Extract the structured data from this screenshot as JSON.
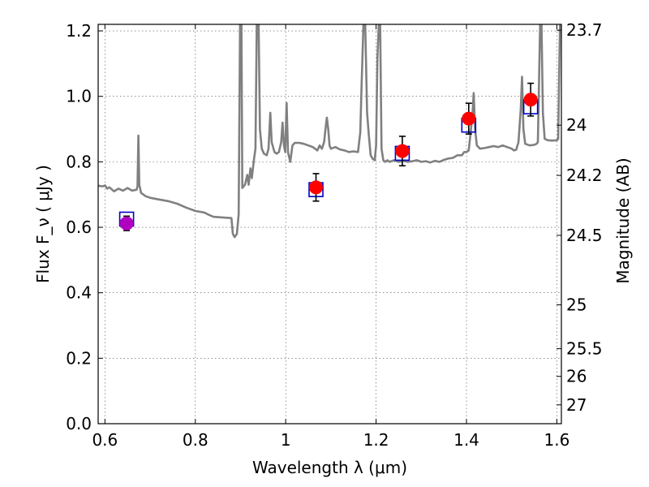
{
  "chart_data": {
    "type": "scatter",
    "xlabel": "Wavelength  λ (μm)",
    "ylabel": "Flux  F_ν  ( μJy )",
    "ylabel_right": "Magnitude (AB)",
    "xlim": [
      0.585,
      1.61
    ],
    "ylim": [
      0.0,
      1.22
    ],
    "grid": true,
    "x_ticks": [
      0.6,
      0.8,
      1.0,
      1.2,
      1.4,
      1.6
    ],
    "x_tick_labels": [
      "0.6",
      "0.8",
      "1",
      "1.2",
      "1.4",
      "1.6"
    ],
    "y_ticks": [
      0.0,
      0.2,
      0.4,
      0.6,
      0.8,
      1.0,
      1.2
    ],
    "y_tick_labels": [
      "0.0",
      "0.2",
      "0.4",
      "0.6",
      "0.8",
      "1.0",
      "1.2"
    ],
    "right_ticks": [
      {
        "label": "23.7",
        "mag": 23.7
      },
      {
        "label": "24",
        "mag": 24.0
      },
      {
        "label": "24.2",
        "mag": 24.2
      },
      {
        "label": "24.5",
        "mag": 24.5
      },
      {
        "label": "25",
        "mag": 25.0
      },
      {
        "label": "25.5",
        "mag": 25.5
      },
      {
        "label": "26",
        "mag": 26.0
      },
      {
        "label": "27",
        "mag": 27.0
      }
    ],
    "colors": {
      "spectrum": "#808080",
      "observed_point": "#ff0000",
      "first_point": "#b000c0",
      "model_box": "#0000cc",
      "errorbar": "#000000"
    },
    "observed": [
      {
        "x": 0.648,
        "y": 0.612,
        "err": 0.022,
        "color": "first"
      },
      {
        "x": 1.067,
        "y": 0.722,
        "err": 0.042
      },
      {
        "x": 1.258,
        "y": 0.833,
        "err": 0.045
      },
      {
        "x": 1.405,
        "y": 0.932,
        "err": 0.047
      },
      {
        "x": 1.542,
        "y": 0.99,
        "err": 0.05
      }
    ],
    "model_boxes": [
      {
        "x": 0.648,
        "y": 0.625
      },
      {
        "x": 1.067,
        "y": 0.715
      },
      {
        "x": 1.258,
        "y": 0.826
      },
      {
        "x": 1.405,
        "y": 0.912
      },
      {
        "x": 1.542,
        "y": 0.968
      }
    ],
    "spectrum": [
      [
        0.585,
        0.727
      ],
      [
        0.595,
        0.725
      ],
      [
        0.6,
        0.728
      ],
      [
        0.605,
        0.718
      ],
      [
        0.61,
        0.722
      ],
      [
        0.62,
        0.71
      ],
      [
        0.63,
        0.718
      ],
      [
        0.64,
        0.712
      ],
      [
        0.65,
        0.72
      ],
      [
        0.66,
        0.712
      ],
      [
        0.67,
        0.715
      ],
      [
        0.672,
        0.725
      ],
      [
        0.674,
        0.88
      ],
      [
        0.676,
        0.73
      ],
      [
        0.68,
        0.705
      ],
      [
        0.69,
        0.695
      ],
      [
        0.7,
        0.69
      ],
      [
        0.72,
        0.685
      ],
      [
        0.74,
        0.68
      ],
      [
        0.76,
        0.672
      ],
      [
        0.78,
        0.66
      ],
      [
        0.8,
        0.65
      ],
      [
        0.82,
        0.645
      ],
      [
        0.83,
        0.638
      ],
      [
        0.84,
        0.632
      ],
      [
        0.86,
        0.63
      ],
      [
        0.88,
        0.628
      ],
      [
        0.883,
        0.58
      ],
      [
        0.887,
        0.57
      ],
      [
        0.892,
        0.58
      ],
      [
        0.896,
        0.64
      ],
      [
        0.899,
        1.22
      ],
      [
        0.902,
        1.22
      ],
      [
        0.904,
        0.72
      ],
      [
        0.91,
        0.73
      ],
      [
        0.915,
        0.76
      ],
      [
        0.918,
        0.73
      ],
      [
        0.922,
        0.78
      ],
      [
        0.925,
        0.75
      ],
      [
        0.93,
        0.81
      ],
      [
        0.933,
        0.84
      ],
      [
        0.936,
        1.22
      ],
      [
        0.94,
        1.22
      ],
      [
        0.943,
        0.9
      ],
      [
        0.947,
        0.84
      ],
      [
        0.952,
        0.825
      ],
      [
        0.958,
        0.82
      ],
      [
        0.962,
        0.84
      ],
      [
        0.966,
        0.95
      ],
      [
        0.969,
        0.86
      ],
      [
        0.975,
        0.83
      ],
      [
        0.98,
        0.825
      ],
      [
        0.985,
        0.83
      ],
      [
        0.99,
        0.86
      ],
      [
        0.993,
        0.92
      ],
      [
        0.996,
        0.85
      ],
      [
        0.999,
        0.83
      ],
      [
        1.002,
        0.98
      ],
      [
        1.005,
        0.83
      ],
      [
        1.01,
        0.8
      ],
      [
        1.015,
        0.85
      ],
      [
        1.02,
        0.858
      ],
      [
        1.03,
        0.858
      ],
      [
        1.04,
        0.855
      ],
      [
        1.05,
        0.85
      ],
      [
        1.06,
        0.845
      ],
      [
        1.07,
        0.835
      ],
      [
        1.075,
        0.85
      ],
      [
        1.08,
        0.84
      ],
      [
        1.085,
        0.86
      ],
      [
        1.088,
        0.9
      ],
      [
        1.091,
        0.935
      ],
      [
        1.094,
        0.9
      ],
      [
        1.097,
        0.85
      ],
      [
        1.1,
        0.84
      ],
      [
        1.11,
        0.845
      ],
      [
        1.12,
        0.838
      ],
      [
        1.13,
        0.835
      ],
      [
        1.14,
        0.83
      ],
      [
        1.15,
        0.832
      ],
      [
        1.16,
        0.83
      ],
      [
        1.165,
        0.89
      ],
      [
        1.168,
        1.04
      ],
      [
        1.172,
        1.22
      ],
      [
        1.176,
        1.22
      ],
      [
        1.18,
        0.95
      ],
      [
        1.184,
        0.88
      ],
      [
        1.188,
        0.82
      ],
      [
        1.192,
        0.81
      ],
      [
        1.197,
        0.805
      ],
      [
        1.2,
        0.85
      ],
      [
        1.203,
        1.12
      ],
      [
        1.206,
        1.22
      ],
      [
        1.209,
        1.22
      ],
      [
        1.212,
        0.84
      ],
      [
        1.216,
        0.805
      ],
      [
        1.22,
        0.8
      ],
      [
        1.225,
        0.805
      ],
      [
        1.23,
        0.8
      ],
      [
        1.24,
        0.805
      ],
      [
        1.25,
        0.8
      ],
      [
        1.26,
        0.803
      ],
      [
        1.27,
        0.8
      ],
      [
        1.28,
        0.802
      ],
      [
        1.29,
        0.805
      ],
      [
        1.3,
        0.8
      ],
      [
        1.31,
        0.802
      ],
      [
        1.32,
        0.798
      ],
      [
        1.33,
        0.803
      ],
      [
        1.34,
        0.8
      ],
      [
        1.35,
        0.806
      ],
      [
        1.36,
        0.81
      ],
      [
        1.37,
        0.812
      ],
      [
        1.38,
        0.82
      ],
      [
        1.39,
        0.82
      ],
      [
        1.395,
        0.83
      ],
      [
        1.4,
        0.83
      ],
      [
        1.405,
        0.835
      ],
      [
        1.41,
        0.9
      ],
      [
        1.413,
        0.94
      ],
      [
        1.416,
        1.01
      ],
      [
        1.419,
        0.9
      ],
      [
        1.423,
        0.85
      ],
      [
        1.43,
        0.84
      ],
      [
        1.44,
        0.842
      ],
      [
        1.45,
        0.845
      ],
      [
        1.46,
        0.848
      ],
      [
        1.47,
        0.845
      ],
      [
        1.48,
        0.85
      ],
      [
        1.49,
        0.845
      ],
      [
        1.5,
        0.84
      ],
      [
        1.505,
        0.835
      ],
      [
        1.51,
        0.837
      ],
      [
        1.515,
        0.86
      ],
      [
        1.52,
        0.96
      ],
      [
        1.523,
        1.06
      ],
      [
        1.526,
        0.9
      ],
      [
        1.53,
        0.855
      ],
      [
        1.54,
        0.85
      ],
      [
        1.55,
        0.852
      ],
      [
        1.555,
        0.855
      ],
      [
        1.558,
        0.86
      ],
      [
        1.56,
        1.0
      ],
      [
        1.563,
        1.22
      ],
      [
        1.566,
        1.22
      ],
      [
        1.569,
        0.95
      ],
      [
        1.573,
        0.87
      ],
      [
        1.58,
        0.866
      ],
      [
        1.59,
        0.865
      ],
      [
        1.6,
        0.866
      ],
      [
        1.603,
        0.87
      ],
      [
        1.605,
        1.06
      ],
      [
        1.607,
        1.22
      ],
      [
        1.61,
        1.22
      ]
    ]
  }
}
